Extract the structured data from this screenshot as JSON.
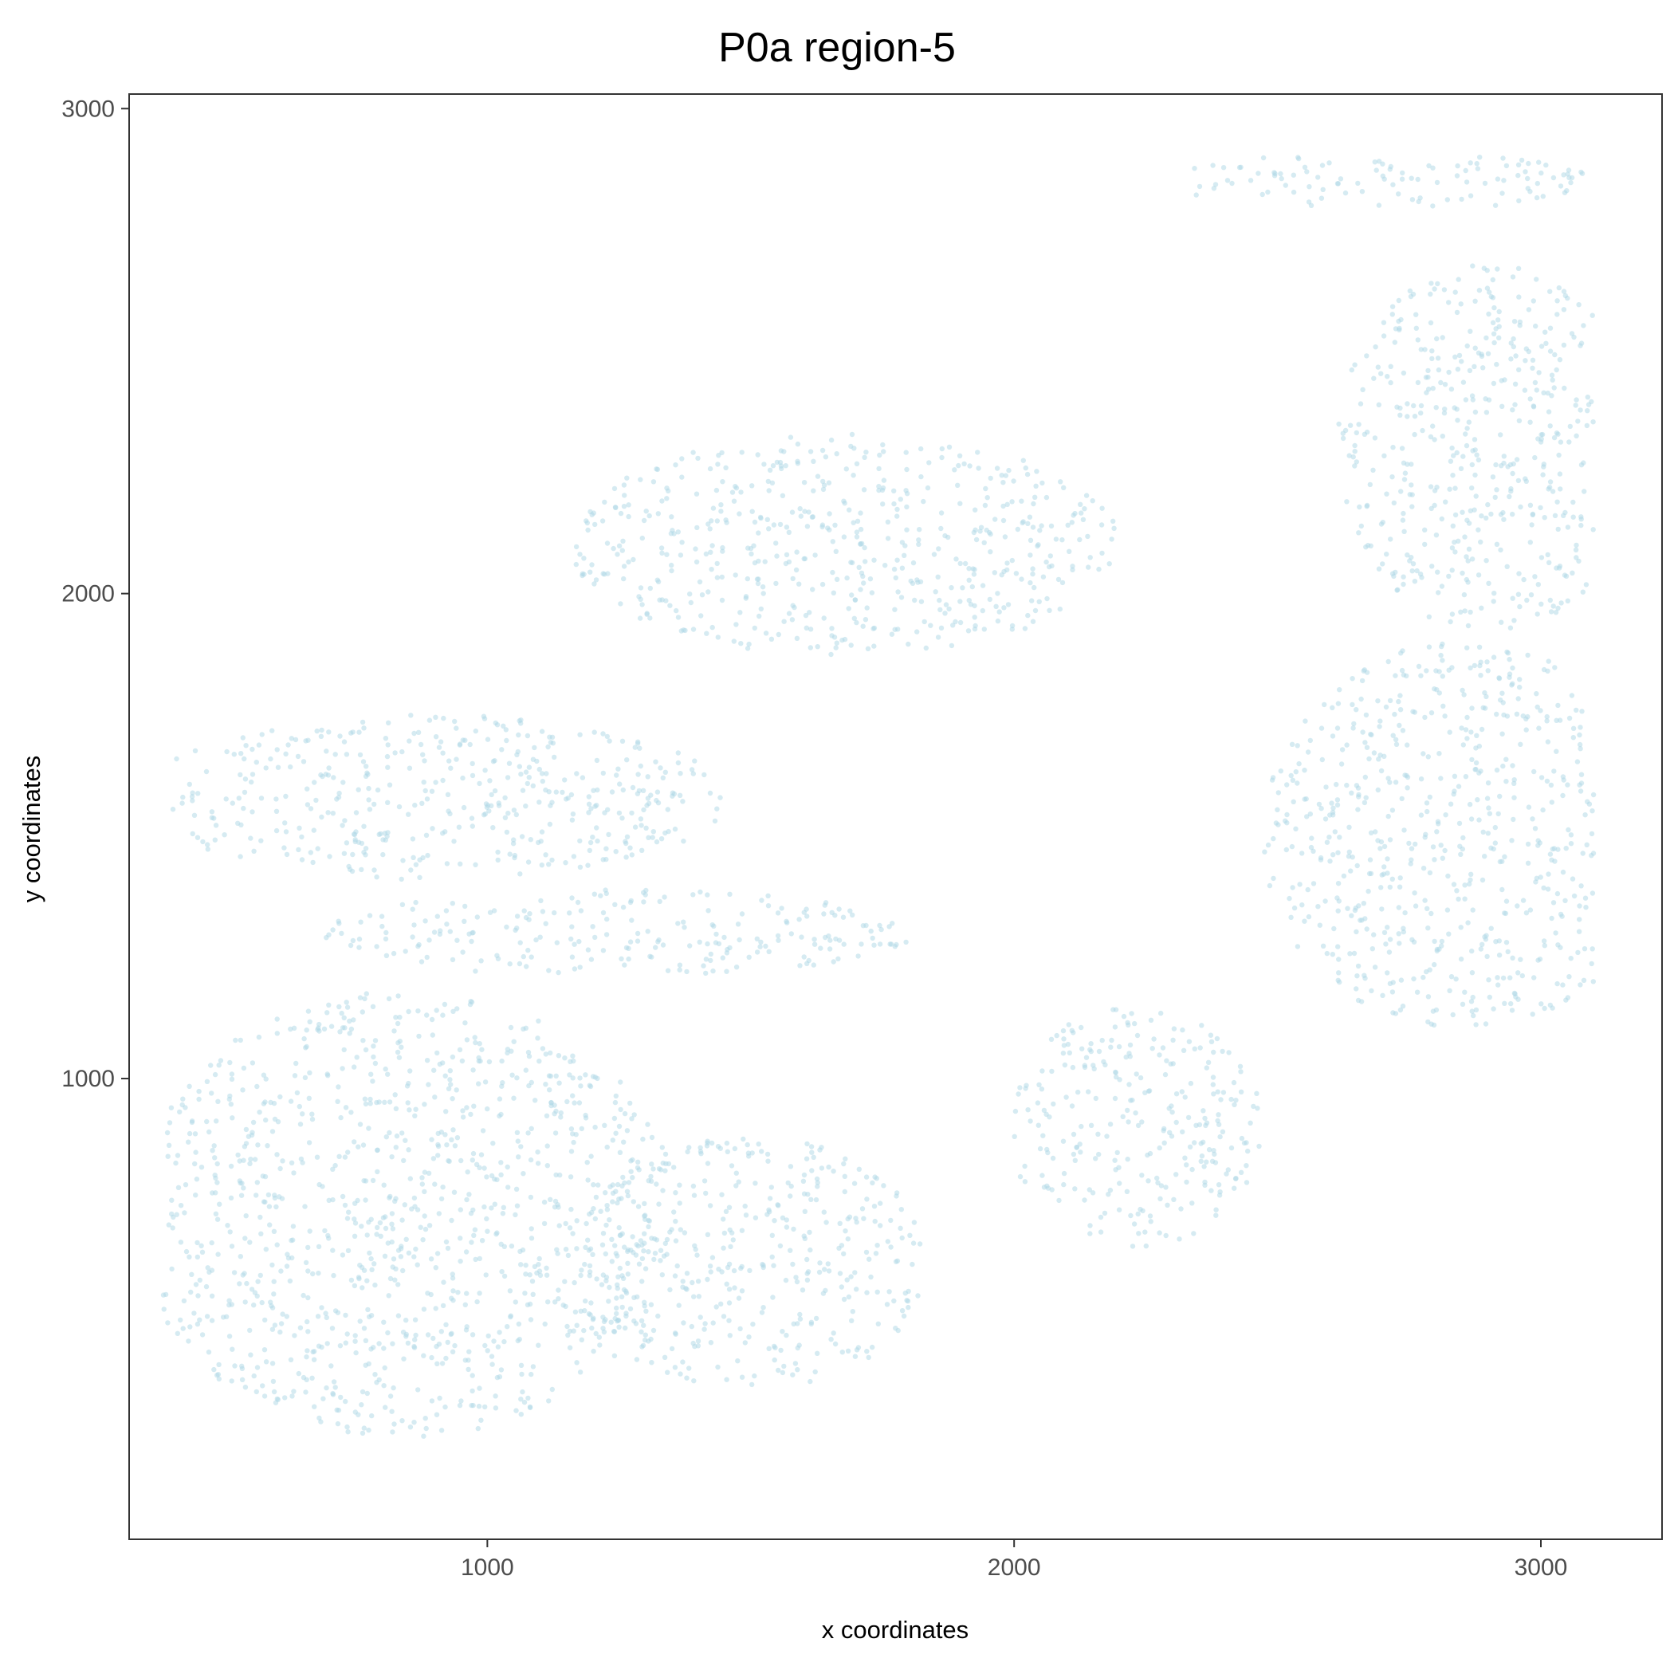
{
  "chart_data": {
    "type": "scatter",
    "title": "P0a region-5",
    "xlabel": "x coordinates",
    "ylabel": "y coordinates",
    "xlim": [
      320,
      3230
    ],
    "ylim": [
      50,
      3030
    ],
    "x_ticks": [
      "1000",
      "2000",
      "3000"
    ],
    "y_ticks": [
      "1000",
      "2000",
      "3000"
    ],
    "grid": false,
    "legend": "none",
    "point_color": "#add8e6",
    "point_opacity": 0.5,
    "regions_description_of_clusters": [
      {
        "cx": 840,
        "cy": 720,
        "rx": 520,
        "ry": 460
      },
      {
        "cx": 1250,
        "cy": 1300,
        "rx": 560,
        "ry": 90
      },
      {
        "cx": 1500,
        "cy": 620,
        "rx": 340,
        "ry": 260
      },
      {
        "cx": 900,
        "cy": 1580,
        "rx": 560,
        "ry": 170
      },
      {
        "cx": 1680,
        "cy": 2100,
        "rx": 520,
        "ry": 230
      },
      {
        "cx": 2230,
        "cy": 900,
        "rx": 240,
        "ry": 250
      },
      {
        "cx": 2900,
        "cy": 2300,
        "rx": 290,
        "ry": 380
      },
      {
        "cx": 2850,
        "cy": 1500,
        "rx": 380,
        "ry": 400
      },
      {
        "cx": 2700,
        "cy": 2850,
        "rx": 420,
        "ry": 60
      }
    ]
  }
}
